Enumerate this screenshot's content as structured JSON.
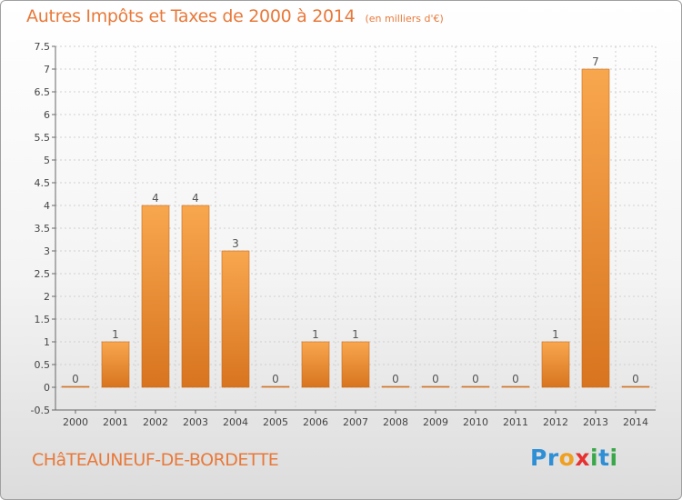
{
  "title": "Autres Impôts et Taxes de 2000 à 2014",
  "subtitle": "(en milliers d'€)",
  "commune": "CHâTEAUNEUF-DE-BORDETTE",
  "logo": {
    "text": "Proxiti",
    "letters": [
      {
        "ch": "P",
        "color": "#2f8fd6"
      },
      {
        "ch": "r",
        "color": "#2f8fd6"
      },
      {
        "ch": "o",
        "color": "#f0a020"
      },
      {
        "ch": "x",
        "color": "#e83030"
      },
      {
        "ch": "i",
        "color": "#3aa84a"
      },
      {
        "ch": "t",
        "color": "#2f8fd6"
      },
      {
        "ch": "i",
        "color": "#3aa84a"
      }
    ]
  },
  "colors": {
    "bar_light": "#f8a74f",
    "bar_dark": "#d8741f",
    "title": "#e8793a",
    "grid": "#d0d0d0",
    "axis": "#666666"
  },
  "chart_data": {
    "type": "bar",
    "categories": [
      "2000",
      "2001",
      "2002",
      "2003",
      "2004",
      "2005",
      "2006",
      "2007",
      "2008",
      "2009",
      "2010",
      "2011",
      "2012",
      "2013",
      "2014"
    ],
    "values": [
      0,
      1,
      4,
      4,
      3,
      0,
      1,
      1,
      0,
      0,
      0,
      0,
      1,
      7,
      0
    ],
    "data_labels": [
      "0",
      "1",
      "4",
      "4",
      "3",
      "0",
      "1",
      "1",
      "0",
      "0",
      "0",
      "0",
      "1",
      "7",
      "0"
    ],
    "y_ticks": [
      "-0.5",
      "0",
      "0.5",
      "1",
      "1.5",
      "2",
      "2.5",
      "3",
      "3.5",
      "4",
      "4.5",
      "5",
      "5.5",
      "6",
      "6.5",
      "7",
      "7.5"
    ],
    "ylim": [
      -0.5,
      7.5
    ],
    "grid": true,
    "legend": "none"
  }
}
